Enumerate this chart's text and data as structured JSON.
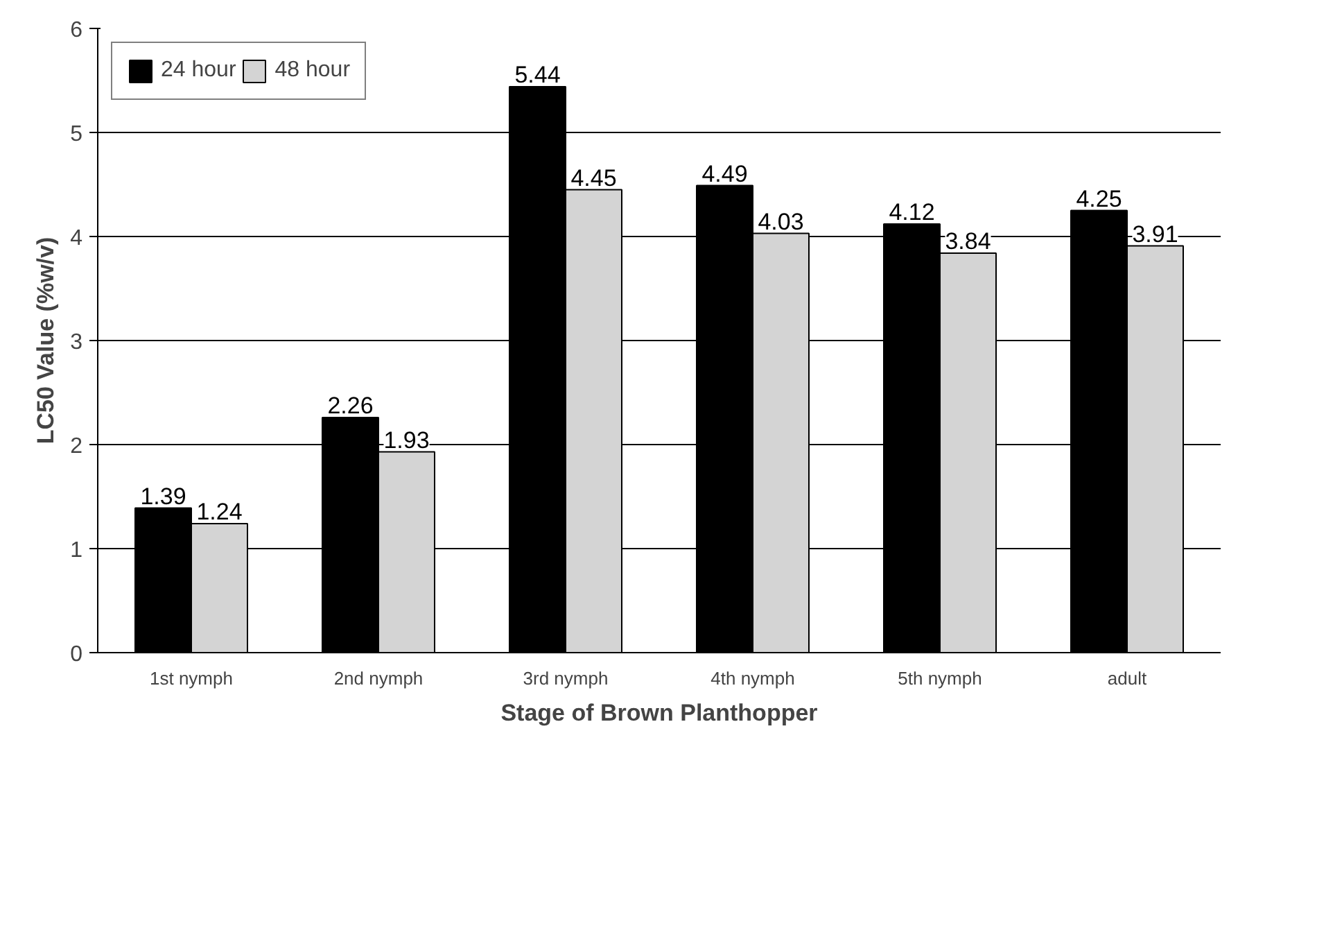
{
  "chart_data": {
    "type": "bar",
    "xlabel": "Stage of Brown Planthopper",
    "ylabel": "LC50 Value (%w/v)",
    "categories": [
      "1st nymph",
      "2nd nymph",
      "3rd nymph",
      "4th nymph",
      "5th nymph",
      "adult"
    ],
    "series": [
      {
        "name": "24 hour",
        "color": "#000000",
        "values": [
          1.39,
          2.26,
          5.44,
          4.49,
          4.12,
          4.25
        ]
      },
      {
        "name": "48 hour",
        "color": "#d4d4d4",
        "values": [
          1.24,
          1.93,
          4.45,
          4.03,
          3.84,
          3.91
        ]
      }
    ],
    "ylim": [
      0,
      6
    ],
    "yticks": [
      0,
      1,
      2,
      3,
      4,
      5,
      6
    ],
    "grid": "y",
    "legend": "top left",
    "data_labels": true
  }
}
